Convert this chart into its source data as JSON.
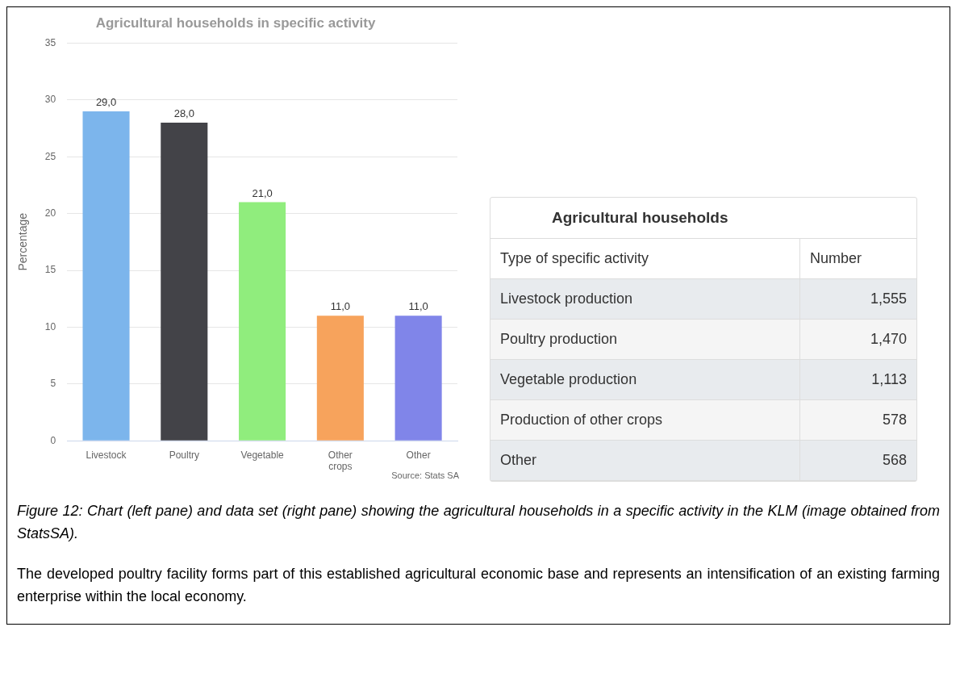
{
  "chart_data": [
    {
      "type": "bar",
      "title": "Agricultural households in specific activity",
      "ylabel": "Percentage",
      "categories": [
        "Livestock",
        "Poultry",
        "Vegetable",
        "Other crops",
        "Other"
      ],
      "values": [
        29,
        28,
        21,
        11,
        11
      ],
      "colors": [
        "#7cb5ec",
        "#434348",
        "#90ed7d",
        "#f7a35c",
        "#8085e9"
      ],
      "value_labels": [
        "29,0",
        "28,0",
        "21,0",
        "11,0",
        "11,0"
      ],
      "ylim": [
        0,
        35
      ],
      "yticks": [
        0,
        5,
        10,
        15,
        20,
        25,
        30,
        35
      ],
      "grid": "y",
      "legend": false,
      "annotations": [
        "Source: Stats SA",
        "Figure 12: Chart (left pane) and data set (right pane) showing the agricultural households in a specific activity in the KLM (image obtained from StatsSA).",
        "The developed poultry facility forms part of this established agricultural economic base and represents an intensification of an existing farming enterprise within the local economy."
      ]
    },
    {
      "type": "other",
      "title": "Agricultural households",
      "xlabel": "Type of specific activity",
      "ylabel": "Number",
      "categories": [
        "Livestock production",
        "Poultry production",
        "Vegetable production",
        "Production of other crops",
        "Other"
      ],
      "value_labels": [
        "1,555",
        "1,470",
        "1,113",
        "578",
        "568"
      ]
    }
  ]
}
